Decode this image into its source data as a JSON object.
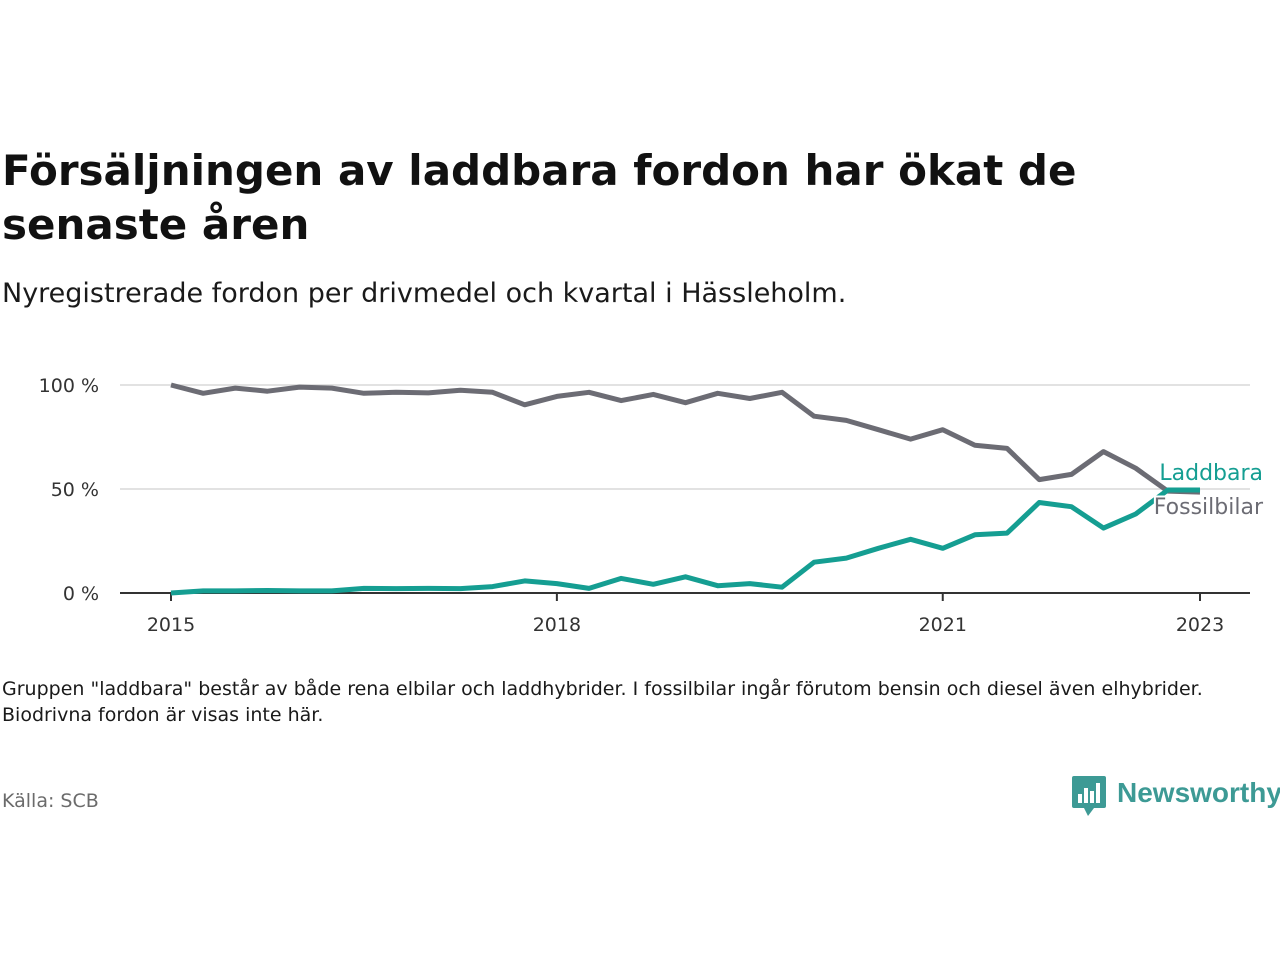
{
  "title": "Försäljningen av laddbara fordon har ökat de senaste åren",
  "subtitle": "Nyregistrerade fordon per drivmedel och kvartal i Hässleholm.",
  "note": "Gruppen \"laddbara\" består av både rena elbilar och laddhybrider. I fossilbilar ingår förutom bensin och diesel även elhybrider. Biodrivna fordon är visas inte här.",
  "source": "Källa: SCB",
  "brand": {
    "name": "Newsworthy",
    "icon": "bar-chart-speech-bubble-icon",
    "color": "#3d9a95"
  },
  "chart_data": {
    "type": "line",
    "title": "Försäljningen av laddbara fordon har ökat de senaste åren",
    "subtitle": "Nyregistrerade fordon per drivmedel och kvartal i Hässleholm.",
    "xlabel": "",
    "ylabel": "",
    "x_ticks": [
      "2015",
      "2018",
      "2021",
      "2023"
    ],
    "y_ticks": [
      "0 %",
      "50 %",
      "100 %"
    ],
    "ylim": [
      0,
      100
    ],
    "grid": true,
    "x": [
      "2015-Q1",
      "2015-Q2",
      "2015-Q3",
      "2015-Q4",
      "2016-Q1",
      "2016-Q2",
      "2016-Q3",
      "2016-Q4",
      "2017-Q1",
      "2017-Q2",
      "2017-Q3",
      "2017-Q4",
      "2018-Q1",
      "2018-Q2",
      "2018-Q3",
      "2018-Q4",
      "2019-Q1",
      "2019-Q2",
      "2019-Q3",
      "2019-Q4",
      "2020-Q1",
      "2020-Q2",
      "2020-Q3",
      "2020-Q4",
      "2021-Q1",
      "2021-Q2",
      "2021-Q3",
      "2021-Q4",
      "2022-Q1",
      "2022-Q2",
      "2022-Q3",
      "2022-Q4",
      "2023-Q1"
    ],
    "series": [
      {
        "name": "Laddbara",
        "color": "#159e92",
        "values": [
          0,
          1,
          1,
          1.2,
          1,
          1,
          2.2,
          2.1,
          2.2,
          2.1,
          3.1,
          5.8,
          4.5,
          2.2,
          7,
          4.2,
          7.8,
          3.5,
          4.5,
          2.8,
          14.8,
          16.8,
          21.5,
          25.8,
          21.5,
          28,
          28.8,
          43.5,
          41.5,
          31.2,
          38,
          49.5,
          49.5
        ]
      },
      {
        "name": "Fossilbilar",
        "color": "#6c6c74",
        "values": [
          100,
          96,
          98.5,
          97,
          99,
          98.5,
          96,
          96.5,
          96.2,
          97.5,
          96.5,
          90.5,
          94.5,
          96.5,
          92.5,
          95.5,
          91.5,
          96,
          93.5,
          96.5,
          85,
          83,
          78.5,
          74,
          78.5,
          71,
          69.5,
          54.5,
          57,
          68,
          60,
          49,
          48.5
        ]
      }
    ]
  }
}
